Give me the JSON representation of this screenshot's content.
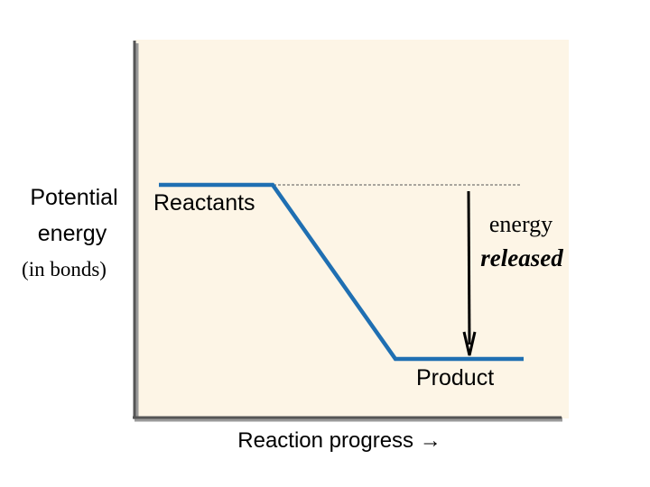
{
  "diagram": {
    "y_axis_label_line1": "Potential",
    "y_axis_label_line2": "energy",
    "y_axis_label_line3": "(in bonds)",
    "reactants_label": "Reactants",
    "product_label": "Product",
    "energy_label_line1": "energy",
    "energy_label_line2": "released",
    "x_axis_label": "Reaction progress →"
  },
  "colors": {
    "plot_background": "#fdf5e6",
    "energy_curve": "#1f6fb2",
    "axes": "#555555",
    "arrow": "#000000",
    "reference_line": "#555555"
  }
}
